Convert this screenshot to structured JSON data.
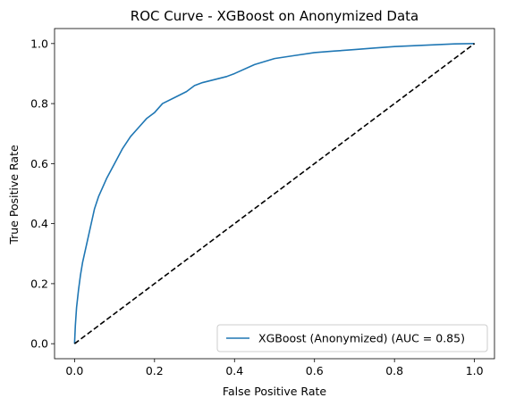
{
  "chart_data": {
    "type": "line",
    "title": "ROC Curve - XGBoost on Anonymized Data",
    "xlabel": "False Positive Rate",
    "ylabel": "True Positive Rate",
    "xlim": [
      -0.05,
      1.05
    ],
    "ylim": [
      -0.05,
      1.05
    ],
    "xticks": [
      0.0,
      0.2,
      0.4,
      0.6,
      0.8,
      1.0
    ],
    "yticks": [
      0.0,
      0.2,
      0.4,
      0.6,
      0.8,
      1.0
    ],
    "xtick_labels": [
      "0.0",
      "0.2",
      "0.4",
      "0.6",
      "0.8",
      "1.0"
    ],
    "ytick_labels": [
      "0.0",
      "0.2",
      "0.4",
      "0.6",
      "0.8",
      "1.0"
    ],
    "grid": false,
    "legend_position": "lower-right",
    "series": [
      {
        "name": "XGBoost (Anonymized) (AUC = 0.85)",
        "color": "#1f77b4",
        "style": "solid",
        "x": [
          0.0,
          0.002,
          0.005,
          0.01,
          0.015,
          0.02,
          0.03,
          0.04,
          0.05,
          0.06,
          0.07,
          0.08,
          0.1,
          0.12,
          0.14,
          0.16,
          0.18,
          0.2,
          0.22,
          0.25,
          0.28,
          0.3,
          0.32,
          0.35,
          0.38,
          0.4,
          0.45,
          0.5,
          0.55,
          0.6,
          0.65,
          0.7,
          0.75,
          0.8,
          0.85,
          0.9,
          0.95,
          1.0
        ],
        "y": [
          0.0,
          0.06,
          0.12,
          0.18,
          0.23,
          0.27,
          0.33,
          0.39,
          0.45,
          0.49,
          0.52,
          0.55,
          0.6,
          0.65,
          0.69,
          0.72,
          0.75,
          0.77,
          0.8,
          0.82,
          0.84,
          0.86,
          0.87,
          0.88,
          0.89,
          0.9,
          0.93,
          0.95,
          0.96,
          0.97,
          0.975,
          0.98,
          0.985,
          0.99,
          0.993,
          0.996,
          0.999,
          1.0
        ]
      },
      {
        "name": "",
        "color": "#000000",
        "style": "dashed",
        "x": [
          0.0,
          1.0
        ],
        "y": [
          0.0,
          1.0
        ]
      }
    ]
  }
}
